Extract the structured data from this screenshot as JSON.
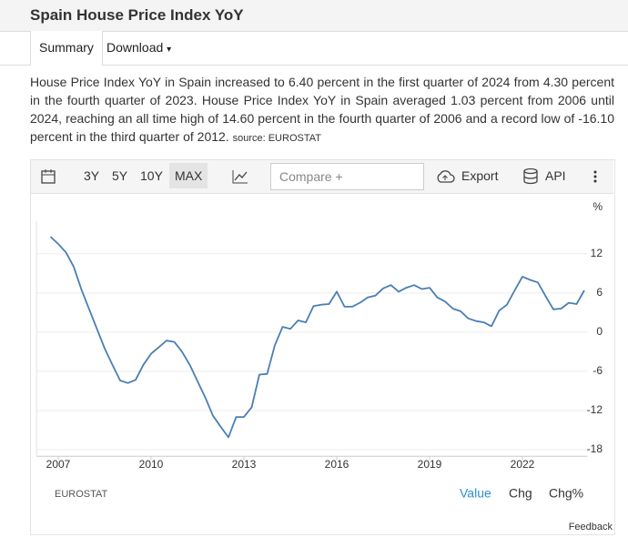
{
  "header": {
    "title": "Spain House Price Index YoY"
  },
  "tabs": [
    "Summary",
    "Download"
  ],
  "description": {
    "text": "House Price Index YoY in Spain increased to 6.40 percent in the first quarter of 2024 from 4.30 percent in the fourth quarter of 2023. House Price Index YoY in Spain averaged 1.03 percent from 2006 until 2024, reaching an all time high of 14.60 percent in the fourth quarter of 2006 and a record low of -16.10 percent in the third quarter of 2012.",
    "source": "source: EUROSTAT"
  },
  "toolbar": {
    "ranges": [
      "3Y",
      "5Y",
      "10Y",
      "MAX"
    ],
    "compare": "Compare +",
    "export": "Export",
    "api": "API"
  },
  "footer": {
    "source": "EUROSTAT",
    "views": [
      "Value",
      "Chg",
      "Chg%"
    ],
    "feedback": "Feedback"
  },
  "chart_data": {
    "type": "line",
    "ylabel": "%",
    "color": "#4a7eb5",
    "x": [
      2006.75,
      2007,
      2007.25,
      2007.5,
      2007.75,
      2008,
      2008.25,
      2008.5,
      2008.75,
      2009,
      2009.25,
      2009.5,
      2009.75,
      2010,
      2010.25,
      2010.5,
      2010.75,
      2011,
      2011.25,
      2011.5,
      2011.75,
      2012,
      2012.25,
      2012.5,
      2012.75,
      2013,
      2013.25,
      2013.5,
      2013.75,
      2014,
      2014.25,
      2014.5,
      2014.75,
      2015,
      2015.25,
      2015.5,
      2015.75,
      2016,
      2016.25,
      2016.5,
      2016.75,
      2017,
      2017.25,
      2017.5,
      2017.75,
      2018,
      2018.25,
      2018.5,
      2018.75,
      2019,
      2019.25,
      2019.5,
      2019.75,
      2020,
      2020.25,
      2020.5,
      2020.75,
      2021,
      2021.25,
      2021.5,
      2021.75,
      2022,
      2022.25,
      2022.5,
      2022.75,
      2023,
      2023.25,
      2023.5,
      2023.75,
      2024
    ],
    "values": [
      14.6,
      13.5,
      12.2,
      10,
      6.5,
      3.5,
      0.5,
      -2.5,
      -5,
      -7.4,
      -7.8,
      -7.3,
      -5,
      -3.3,
      -2.3,
      -1.3,
      -1.5,
      -3,
      -5,
      -7.5,
      -10,
      -12.8,
      -14.5,
      -16.1,
      -13,
      -13,
      -11.5,
      -6.5,
      -6.4,
      -2,
      0.8,
      0.5,
      1.8,
      1.5,
      4,
      4.2,
      4.3,
      6.2,
      3.9,
      3.9,
      4.5,
      5.3,
      5.6,
      6.7,
      7.2,
      6.2,
      6.8,
      7.2,
      6.6,
      6.8,
      5.3,
      4.7,
      3.6,
      3.2,
      2.1,
      1.7,
      1.5,
      0.9,
      3.3,
      4.2,
      6.4,
      8.5,
      8,
      7.6,
      5.5,
      3.5,
      3.6,
      4.5,
      4.3,
      6.4
    ],
    "xlim": [
      2006.3,
      2024.1
    ],
    "ylim": [
      -19,
      17
    ],
    "xticks": [
      2007,
      2010,
      2013,
      2016,
      2019,
      2022
    ],
    "yticks": [
      -18,
      -12,
      -6,
      0,
      6,
      12
    ],
    "grid": true
  }
}
